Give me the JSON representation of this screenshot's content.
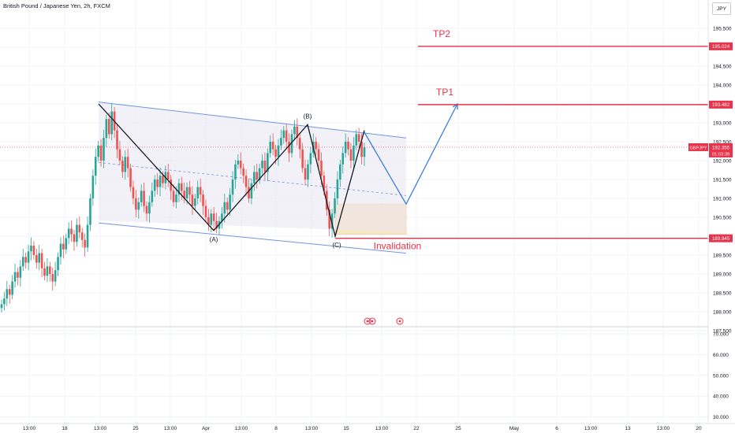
{
  "header": {
    "symbol_title": "British Pound / Japanese Yen, 2h, FXCM",
    "currency": "JPY"
  },
  "chart_data": {
    "type": "candlestick",
    "title": "British Pound / Japanese Yen, 2h, FXCM",
    "price_axis": {
      "range": [
        187.0,
        196.0
      ],
      "ticks": [
        "195.500",
        "195.000",
        "194.500",
        "194.000",
        "193.500",
        "193.000",
        "192.500",
        "192.000",
        "191.500",
        "191.000",
        "190.500",
        "190.000",
        "189.500",
        "189.000",
        "188.500",
        "188.000",
        "187.500"
      ]
    },
    "indicator_axis": {
      "range": [
        27,
        72
      ],
      "ticks": [
        "70.000",
        "60.000",
        "50.000",
        "40.000",
        "30.000"
      ]
    },
    "time_axis_labels": [
      "13:00",
      "18",
      "13:00",
      "25",
      "13:00",
      "Apr",
      "13:00",
      "8",
      "13:00",
      "15",
      "13:00",
      "22",
      "25",
      "May",
      "6",
      "13:00",
      "13",
      "13:00",
      "20"
    ],
    "price_tags": [
      {
        "value": "195.024",
        "color": "#e8334a"
      },
      {
        "value": "193.482",
        "color": "#e8334a"
      },
      {
        "value": "192.355",
        "color": "#e8334a"
      },
      {
        "value": "189.945",
        "color": "#e8334a"
      }
    ],
    "last_price_tag": {
      "symbol": "GBPJPY",
      "price": "192.355",
      "countdown": "01:03:39"
    },
    "annotations": {
      "tp2": "TP2",
      "tp1": "TP1",
      "invalidation": "Invalidation",
      "wave_a": "(A)",
      "wave_b": "(B)",
      "wave_c": "(C)"
    },
    "levels": {
      "tp2": 195.024,
      "tp1": 193.482,
      "last": 192.355,
      "invalidation": 189.945
    },
    "channel": {
      "upper": [
        [
          "2024-03-18 13:00",
          193.55
        ],
        [
          "2024-04-20",
          192.6
        ]
      ],
      "lower": [
        [
          "2024-03-18 13:00",
          190.35
        ],
        [
          "2024-04-20",
          189.55
        ]
      ]
    },
    "abc_wave": [
      [
        "2024-03-18 13:00",
        193.5
      ],
      [
        "2024-04-01 13:00",
        190.15
      ],
      [
        "2024-04-09 13:00",
        192.95
      ],
      [
        "2024-04-12",
        190.0
      ],
      [
        "2024-04-16",
        192.8
      ]
    ],
    "projection": [
      [
        "2024-04-16",
        192.75
      ],
      [
        "2024-04-20",
        190.85
      ],
      [
        "2024-04-25",
        193.5
      ]
    ],
    "target_zone": {
      "from": "2024-04-12",
      "to": "2024-04-20",
      "low": 190.05,
      "high": 190.85
    },
    "candles_close": [
      188.2,
      188.35,
      188.6,
      188.45,
      188.8,
      189.05,
      188.9,
      189.2,
      189.45,
      189.3,
      189.6,
      189.75,
      189.5,
      189.3,
      189.55,
      189.15,
      188.95,
      189.2,
      189.0,
      188.8,
      189.1,
      189.45,
      189.8,
      189.65,
      189.95,
      190.2,
      190.05,
      189.85,
      190.3,
      190.1,
      189.9,
      189.7,
      190.3,
      191.0,
      191.6,
      192.1,
      192.4,
      192.0,
      192.6,
      193.1,
      192.7,
      193.3,
      192.8,
      192.3,
      192.0,
      191.7,
      192.1,
      191.8,
      191.3,
      191.0,
      190.7,
      190.9,
      191.2,
      190.8,
      190.6,
      190.9,
      191.2,
      191.5,
      191.3,
      191.6,
      191.4,
      191.7,
      191.5,
      191.2,
      190.9,
      191.1,
      191.4,
      191.2,
      191.0,
      191.3,
      191.1,
      190.8,
      191.0,
      191.3,
      191.1,
      190.8,
      190.5,
      190.3,
      190.6,
      190.4,
      190.2,
      190.4,
      190.6,
      190.9,
      190.7,
      191.1,
      191.5,
      191.9,
      192.0,
      191.8,
      191.6,
      191.3,
      191.0,
      191.4,
      191.7,
      191.5,
      191.8,
      192.0,
      191.7,
      192.2,
      192.5,
      192.3,
      192.1,
      192.4,
      192.6,
      192.8,
      192.5,
      192.2,
      192.7,
      192.9,
      192.6,
      192.3,
      191.8,
      191.5,
      191.9,
      192.2,
      192.5,
      192.3,
      192.0,
      191.6,
      191.2,
      190.7,
      190.2,
      190.6,
      191.0,
      191.5,
      191.9,
      192.2,
      192.5,
      192.3,
      192.0,
      192.4,
      192.7,
      192.5,
      192.1,
      192.35
    ],
    "oscillator": {
      "range": [
        27,
        72
      ]
    }
  }
}
